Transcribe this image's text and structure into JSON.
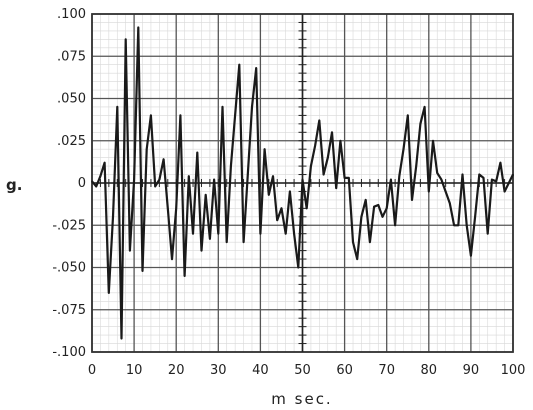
{
  "chart_data": {
    "type": "line",
    "title": "",
    "xlabel": "m sec.",
    "ylabel": "g.",
    "xlim": [
      0,
      100
    ],
    "ylim": [
      -0.1,
      0.1
    ],
    "grid": true,
    "xticks": [
      0,
      10,
      20,
      30,
      40,
      50,
      60,
      70,
      80,
      90,
      100
    ],
    "xtick_labels": [
      "0",
      "10",
      "20",
      "30",
      "40",
      "50",
      "60",
      "70",
      "80",
      "90",
      "100"
    ],
    "yticks": [
      0.1,
      0.075,
      0.05,
      0.025,
      0,
      -0.025,
      -0.05,
      -0.075,
      -0.1
    ],
    "ytick_labels": [
      ".100",
      ".075",
      ".050",
      ".025",
      "0",
      "-.025",
      "-.050",
      "-.075",
      "-.100"
    ],
    "series": [
      {
        "name": "",
        "x": [
          0,
          1,
          2,
          3,
          4,
          5,
          6,
          7,
          8,
          9,
          10,
          11,
          12,
          13,
          14,
          15,
          16,
          17,
          18,
          19,
          20,
          21,
          22,
          23,
          24,
          25,
          26,
          27,
          28,
          29,
          30,
          31,
          32,
          33,
          34,
          35,
          36,
          37,
          38,
          39,
          40,
          41,
          42,
          43,
          44,
          45,
          46,
          47,
          48,
          49,
          50,
          51,
          52,
          53,
          54,
          55,
          56,
          57,
          58,
          59,
          60,
          61,
          62,
          63,
          64,
          65,
          66,
          67,
          68,
          69,
          70,
          71,
          72,
          73,
          74,
          75,
          76,
          77,
          78,
          79,
          80,
          81,
          82,
          83,
          84,
          85,
          86,
          87,
          88,
          89,
          90,
          91,
          92,
          93,
          94,
          95,
          96,
          97,
          98,
          99,
          100
        ],
        "y": [
          0.001,
          -0.002,
          0.004,
          0.012,
          -0.065,
          -0.02,
          0.045,
          -0.092,
          0.085,
          -0.04,
          0.002,
          0.092,
          -0.052,
          0.02,
          0.04,
          -0.002,
          0.002,
          0.014,
          -0.015,
          -0.045,
          -0.015,
          0.04,
          -0.055,
          0.004,
          -0.03,
          0.018,
          -0.04,
          -0.007,
          -0.033,
          0.002,
          -0.03,
          0.045,
          -0.035,
          0.01,
          0.04,
          0.07,
          -0.035,
          0.005,
          0.045,
          0.068,
          -0.03,
          0.02,
          -0.007,
          0.004,
          -0.022,
          -0.015,
          -0.03,
          -0.005,
          -0.03,
          -0.05,
          0.002,
          -0.015,
          0.01,
          0.022,
          0.037,
          0.005,
          0.015,
          0.03,
          -0.003,
          0.025,
          0.003,
          0.003,
          -0.035,
          -0.045,
          -0.02,
          -0.01,
          -0.035,
          -0.014,
          -0.013,
          -0.02,
          -0.015,
          0.002,
          -0.025,
          0.004,
          0.02,
          0.04,
          -0.01,
          0.01,
          0.035,
          0.045,
          -0.005,
          0.025,
          0.006,
          0.002,
          -0.005,
          -0.012,
          -0.025,
          -0.025,
          0.005,
          -0.025,
          -0.043,
          -0.02,
          0.005,
          0.003,
          -0.03,
          0.002,
          0.001,
          0.012,
          -0.005,
          0.0,
          0.005
        ]
      }
    ]
  }
}
